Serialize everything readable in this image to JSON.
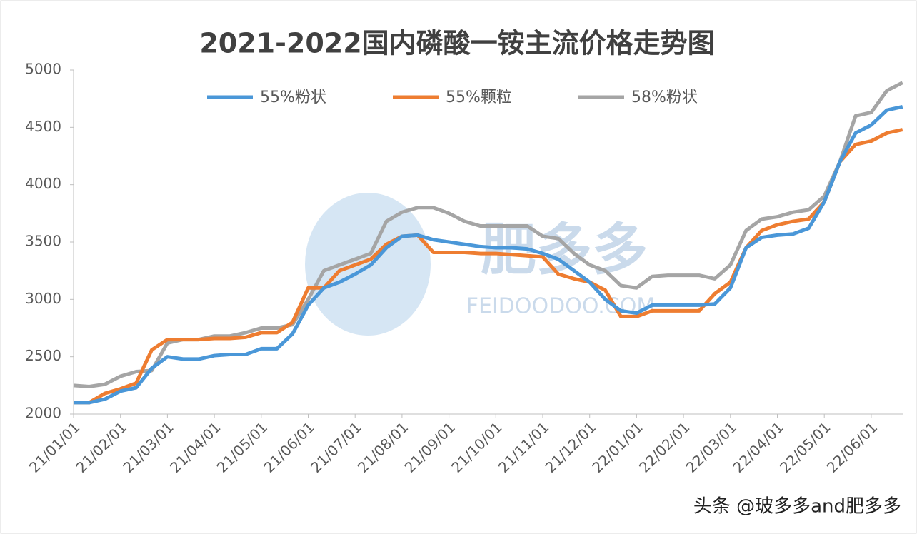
{
  "chart_data": {
    "type": "line",
    "title": "2021-2022国内磷酸一铵主流价格走势图",
    "categories": [
      "21/01/01",
      null,
      null,
      "21/02/01",
      null,
      null,
      "21/03/01",
      null,
      null,
      "21/04/01",
      null,
      null,
      "21/05/01",
      null,
      null,
      "21/06/01",
      null,
      null,
      "21/07/01",
      null,
      null,
      "21/08/01",
      null,
      null,
      "21/09/01",
      null,
      null,
      "21/10/01",
      null,
      null,
      "21/11/01",
      null,
      null,
      "21/12/01",
      null,
      null,
      "22/01/01",
      null,
      null,
      "22/02/01",
      null,
      null,
      "22/03/01",
      null,
      null,
      "22/04/01",
      null,
      null,
      "22/05/01",
      null,
      null,
      "22/06/01",
      null,
      null
    ],
    "series": [
      {
        "name": "55%粉状",
        "color": "#4a97d8",
        "values": [
          2100,
          2100,
          2130,
          2200,
          2230,
          2400,
          2500,
          2480,
          2480,
          2510,
          2520,
          2520,
          2570,
          2570,
          2700,
          2950,
          3100,
          3150,
          3220,
          3300,
          3450,
          3550,
          3560,
          3520,
          3500,
          3480,
          3460,
          3450,
          3450,
          3440,
          3400,
          3350,
          3250,
          3150,
          3000,
          2900,
          2880,
          2950,
          2950,
          2950,
          2950,
          2960,
          3100,
          3450,
          3540,
          3560,
          3570,
          3620,
          3850,
          4200,
          4450,
          4520,
          4650,
          4680
        ]
      },
      {
        "name": "55%颗粒",
        "color": "#ee7d31",
        "values": [
          2100,
          2100,
          2180,
          2220,
          2270,
          2560,
          2650,
          2650,
          2650,
          2660,
          2660,
          2670,
          2710,
          2710,
          2800,
          3100,
          3100,
          3250,
          3300,
          3350,
          3480,
          3550,
          3560,
          3410,
          3410,
          3410,
          3400,
          3400,
          3390,
          3380,
          3370,
          3220,
          3180,
          3150,
          3080,
          2850,
          2850,
          2900,
          2900,
          2900,
          2900,
          3050,
          3150,
          3450,
          3600,
          3650,
          3680,
          3700,
          3850,
          4200,
          4350,
          4380,
          4450,
          4480
        ]
      },
      {
        "name": "58%粉状",
        "color": "#a5a5a5",
        "values": [
          2250,
          2240,
          2260,
          2330,
          2370,
          2380,
          2620,
          2650,
          2650,
          2680,
          2680,
          2710,
          2750,
          2750,
          2780,
          3000,
          3250,
          3300,
          3350,
          3400,
          3680,
          3760,
          3800,
          3800,
          3750,
          3680,
          3640,
          3640,
          3640,
          3640,
          3550,
          3530,
          3400,
          3300,
          3250,
          3120,
          3100,
          3200,
          3210,
          3210,
          3210,
          3180,
          3300,
          3600,
          3700,
          3720,
          3760,
          3780,
          3900,
          4200,
          4600,
          4630,
          4820,
          4890
        ]
      }
    ],
    "ylim": [
      2000,
      5000
    ],
    "yticks": [
      2000,
      2500,
      3000,
      3500,
      4000,
      4500,
      5000
    ],
    "legend": "top",
    "watermark": [
      "肥多多",
      "FEIDOODOO.COM"
    ],
    "credit": "头条 @玻多多and肥多多"
  }
}
